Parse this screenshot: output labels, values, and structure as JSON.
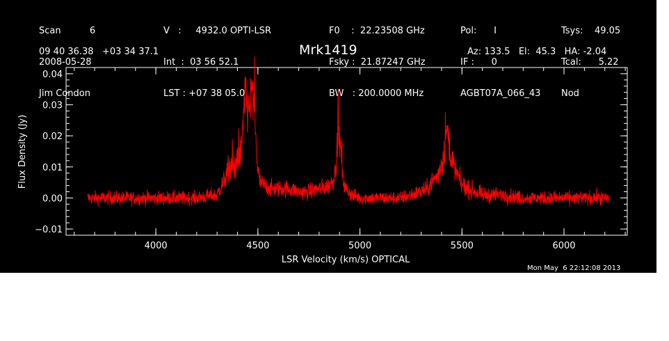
{
  "header": {
    "col1": [
      "Scan          6",
      "2008-05-28",
      "Jim Condon"
    ],
    "col2": [
      "V   :     4932.0 OPTI-LSR",
      "Int  :  03 56 52.1",
      "LST : +07 38 05.0"
    ],
    "col3": [
      "F0    :  22.23508 GHz",
      "Fsky :  21.87247 GHz",
      "BW   : 200.0000 MHz"
    ],
    "col4": [
      "Pol:      I",
      "IF :      0",
      "AGBT07A_066_43"
    ],
    "col5": [
      "Tsys:    49.05",
      "Tcal:      5.22",
      "Nod"
    ]
  },
  "coords": "09 40 36.38   +03 34 37.1",
  "source_name": "Mrk1419",
  "pointing": "Az: 133.5   El:  45.3   HA: -2.04",
  "timestamp": "Mon May  6 22:12:08 2013",
  "chart_data": {
    "type": "line",
    "xlabel": "LSR Velocity (km/s) OPTICAL",
    "ylabel": "Flux Density (Jy)",
    "xlim": [
      3560,
      6310
    ],
    "ylim": [
      -0.012,
      0.042
    ],
    "x_ticks": [
      4000,
      4500,
      5000,
      5500,
      6000
    ],
    "y_ticks": [
      -0.01,
      0.0,
      0.01,
      0.02,
      0.03,
      0.04
    ],
    "y_tick_labels": [
      "−0.01",
      "0.00",
      "0.01",
      "0.02",
      "0.03",
      "0.04"
    ],
    "series_color": "#ff0000",
    "axis_color": "#ffffff",
    "background": "#000000",
    "noise_rms": 0.0015,
    "x_range": [
      3665,
      6220
    ],
    "series": [
      {
        "x": [
          3665,
          3800,
          4000,
          4200,
          4300,
          4330,
          4360,
          4380,
          4400,
          4420,
          4430,
          4440,
          4450,
          4460,
          4470,
          4480,
          4490,
          4500,
          4510,
          4530,
          4560,
          4600,
          4650,
          4700,
          4750,
          4800,
          4850,
          4870,
          4885,
          4895,
          4905,
          4915,
          4930,
          4960,
          5000,
          5100,
          5200,
          5250,
          5300,
          5330,
          5360,
          5380,
          5400,
          5410,
          5420,
          5430,
          5440,
          5450,
          5460,
          5480,
          5500,
          5530,
          5560,
          5600,
          5700,
          5800,
          5900,
          6000,
          6100,
          6220
        ],
        "y": [
          0.0,
          0.0,
          0.0,
          0.0,
          0.001,
          0.005,
          0.009,
          0.01,
          0.012,
          0.016,
          0.026,
          0.035,
          0.028,
          0.03,
          0.034,
          0.031,
          0.018,
          0.009,
          0.005,
          0.004,
          0.003,
          0.003,
          0.003,
          0.002,
          0.002,
          0.003,
          0.004,
          0.006,
          0.012,
          0.022,
          0.016,
          0.006,
          0.003,
          0.001,
          0.0,
          0.0,
          0.0,
          0.001,
          0.002,
          0.003,
          0.006,
          0.007,
          0.011,
          0.014,
          0.018,
          0.023,
          0.016,
          0.013,
          0.01,
          0.007,
          0.004,
          0.003,
          0.002,
          0.001,
          0.001,
          0.0,
          0.0,
          0.0,
          0.0,
          0.0
        ]
      }
    ]
  }
}
